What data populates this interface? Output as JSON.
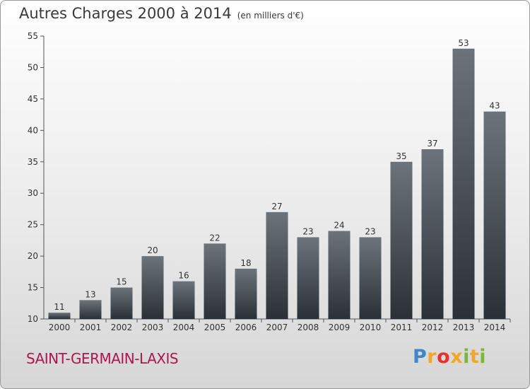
{
  "chart_data": {
    "type": "bar",
    "title": "Autres Charges 2000 à 2014",
    "unit_label": "(en milliers d'€)",
    "categories": [
      "2000",
      "2001",
      "2002",
      "2003",
      "2004",
      "2005",
      "2006",
      "2007",
      "2008",
      "2009",
      "2010",
      "2011",
      "2012",
      "2013",
      "2014"
    ],
    "values": [
      11,
      13,
      15,
      20,
      16,
      22,
      18,
      27,
      23,
      24,
      23,
      35,
      37,
      53,
      43
    ],
    "ylim": [
      10,
      55
    ],
    "yticks": [
      10,
      15,
      20,
      25,
      30,
      35,
      40,
      45,
      50,
      55
    ],
    "grid": false,
    "data_labels": true,
    "colors": {
      "bar_top": "#6c737a",
      "bar_bottom": "#2a3036",
      "text": "#333333"
    }
  },
  "commune_name": "SAINT-GERMAIN-LAXIS",
  "logo": {
    "letters": [
      "P",
      "r",
      "o",
      "x",
      "i",
      "t",
      "i"
    ],
    "colors": [
      "#3f87c8",
      "#f0a72c",
      "#e8312c",
      "#f0a72c",
      "#7ab83b",
      "#f0a72c",
      "#7ab83b"
    ]
  },
  "colors": {
    "commune": "#b5144f"
  }
}
